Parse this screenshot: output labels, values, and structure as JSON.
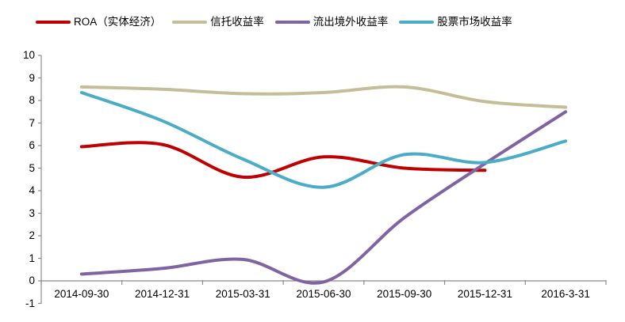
{
  "chart_data": {
    "type": "line",
    "smooth": true,
    "grid": false,
    "legend_position": "top",
    "title": "",
    "xlabel": "",
    "ylabel": "",
    "ylim": [
      -1,
      10
    ],
    "yticks": [
      10,
      9,
      8,
      7,
      6,
      5,
      4,
      3,
      2,
      1,
      0,
      -1
    ],
    "categories": [
      "2014-09-30",
      "2014-12-31",
      "2015-03-31",
      "2015-06-30",
      "2015-09-30",
      "2015-12-31",
      "2016-3-31"
    ],
    "series": [
      {
        "name": "ROA（实体经济）",
        "color": "#C00000",
        "values": [
          5.95,
          6.05,
          4.6,
          5.5,
          5.0,
          4.9,
          null
        ]
      },
      {
        "name": "信托收益率",
        "color": "#C4BD97",
        "values": [
          8.6,
          8.5,
          8.3,
          8.35,
          8.6,
          7.95,
          7.7
        ]
      },
      {
        "name": "流出境外收益率",
        "color": "#8064A2",
        "values": [
          0.3,
          0.55,
          0.95,
          -0.05,
          2.8,
          5.2,
          7.5
        ]
      },
      {
        "name": "股票市场收益率",
        "color": "#4BACC6",
        "values": [
          8.35,
          7.1,
          5.4,
          4.15,
          5.6,
          5.25,
          6.2
        ]
      }
    ],
    "axis_color": "#8C8C8C"
  }
}
